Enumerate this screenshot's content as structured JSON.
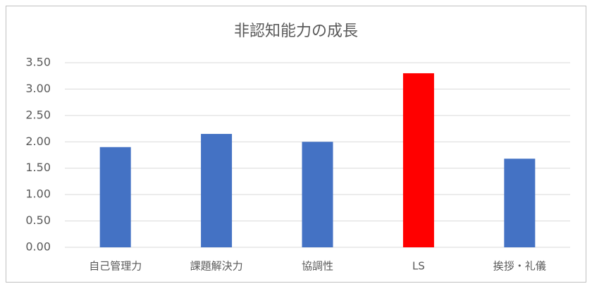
{
  "chart_data": {
    "type": "bar",
    "title": "非認知能力の成長",
    "categories": [
      "自己管理力",
      "課題解決力",
      "協調性",
      "LS",
      "挨拶・礼儀"
    ],
    "values": [
      1.9,
      2.15,
      2.0,
      3.3,
      1.68
    ],
    "colors": [
      "#4472c4",
      "#4472c4",
      "#4472c4",
      "#ff0000",
      "#4472c4"
    ],
    "ylim": [
      0,
      3.5
    ],
    "yticks": [
      {
        "value": 0,
        "label": "0.00"
      },
      {
        "value": 0.5,
        "label": "0.50"
      },
      {
        "value": 1,
        "label": "1.00"
      },
      {
        "value": 1.5,
        "label": "1.50"
      },
      {
        "value": 2,
        "label": "2.00"
      },
      {
        "value": 2.5,
        "label": "2.50"
      },
      {
        "value": 3,
        "label": "3.00"
      },
      {
        "value": 3.5,
        "label": "3.50"
      }
    ],
    "grid": true
  }
}
